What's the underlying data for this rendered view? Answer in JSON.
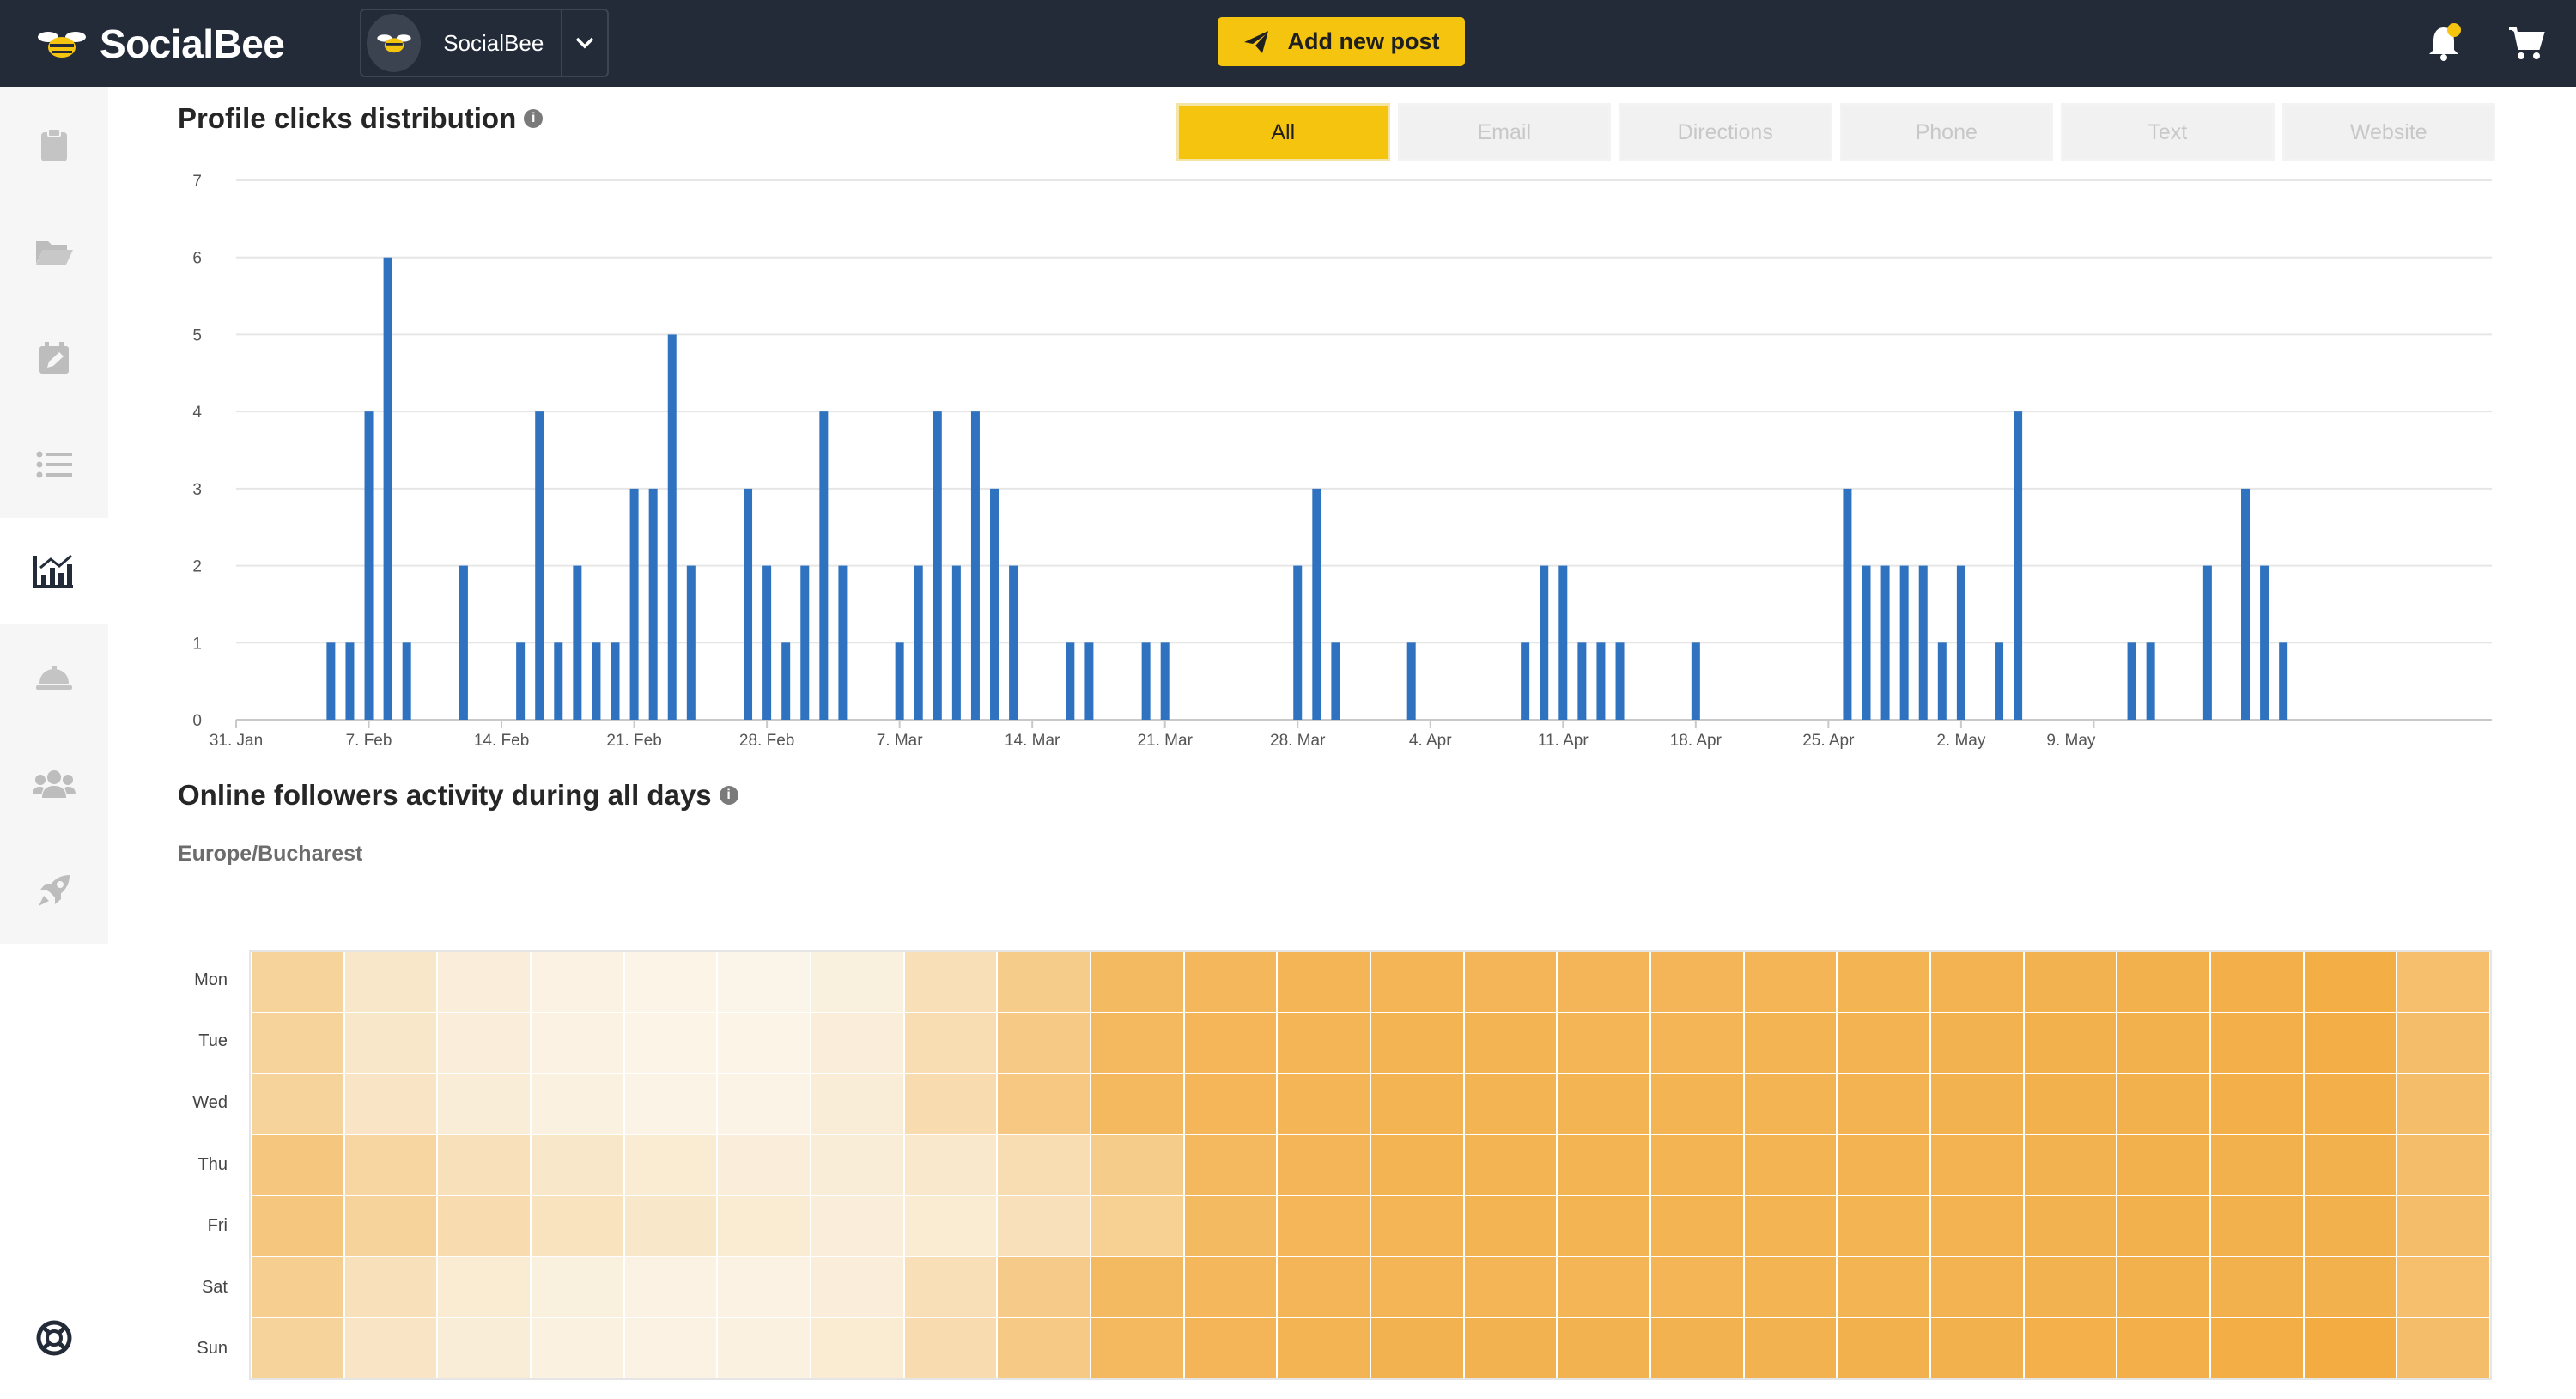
{
  "app": {
    "name": "SocialBee"
  },
  "header": {
    "brand_name": "SocialBee",
    "add_post_label": "Add new post"
  },
  "sidebar": {
    "items": [
      {
        "icon": "clipboard-icon"
      },
      {
        "icon": "folder-icon"
      },
      {
        "icon": "calendar-edit-icon"
      },
      {
        "icon": "list-icon"
      },
      {
        "icon": "analytics-icon",
        "active": true
      },
      {
        "icon": "concierge-bell-icon"
      },
      {
        "icon": "users-icon"
      },
      {
        "icon": "rocket-icon"
      }
    ],
    "bottom_icon": "help-lifebuoy-icon"
  },
  "profile_clicks": {
    "title": "Profile clicks distribution",
    "filters": [
      "All",
      "Email",
      "Directions",
      "Phone",
      "Text",
      "Website"
    ],
    "active_filter": "All"
  },
  "followers_activity": {
    "title": "Online followers activity during all days",
    "timezone": "Europe/Bucharest",
    "days": [
      "Mon",
      "Tue",
      "Wed",
      "Thu",
      "Fri",
      "Sat",
      "Sun"
    ],
    "low_color": "#fbf6ec",
    "high_color": "#f2a93b",
    "intensity": [
      [
        0.45,
        0.2,
        0.1,
        0.05,
        0.03,
        0.02,
        0.08,
        0.3,
        0.55,
        0.78,
        0.82,
        0.85,
        0.85,
        0.84,
        0.84,
        0.84,
        0.85,
        0.86,
        0.87,
        0.88,
        0.9,
        0.92,
        0.94,
        0.72
      ],
      [
        0.45,
        0.2,
        0.1,
        0.05,
        0.03,
        0.03,
        0.1,
        0.32,
        0.58,
        0.8,
        0.83,
        0.85,
        0.86,
        0.86,
        0.85,
        0.85,
        0.86,
        0.87,
        0.88,
        0.89,
        0.9,
        0.92,
        0.93,
        0.74
      ],
      [
        0.45,
        0.22,
        0.12,
        0.06,
        0.04,
        0.04,
        0.12,
        0.34,
        0.6,
        0.8,
        0.83,
        0.85,
        0.86,
        0.86,
        0.86,
        0.86,
        0.86,
        0.87,
        0.88,
        0.89,
        0.9,
        0.92,
        0.92,
        0.74
      ],
      [
        0.62,
        0.42,
        0.28,
        0.2,
        0.14,
        0.1,
        0.12,
        0.18,
        0.32,
        0.55,
        0.8,
        0.84,
        0.86,
        0.86,
        0.86,
        0.86,
        0.86,
        0.87,
        0.87,
        0.88,
        0.89,
        0.9,
        0.9,
        0.74
      ],
      [
        0.62,
        0.45,
        0.34,
        0.26,
        0.2,
        0.14,
        0.1,
        0.14,
        0.28,
        0.5,
        0.78,
        0.83,
        0.85,
        0.86,
        0.86,
        0.86,
        0.86,
        0.86,
        0.87,
        0.88,
        0.89,
        0.9,
        0.9,
        0.74
      ],
      [
        0.52,
        0.28,
        0.14,
        0.08,
        0.05,
        0.05,
        0.1,
        0.3,
        0.56,
        0.78,
        0.82,
        0.84,
        0.85,
        0.85,
        0.85,
        0.85,
        0.86,
        0.86,
        0.87,
        0.88,
        0.89,
        0.9,
        0.9,
        0.72
      ],
      [
        0.45,
        0.22,
        0.12,
        0.07,
        0.05,
        0.06,
        0.14,
        0.34,
        0.58,
        0.8,
        0.84,
        0.86,
        0.88,
        0.88,
        0.88,
        0.88,
        0.88,
        0.89,
        0.9,
        0.91,
        0.92,
        0.94,
        0.96,
        0.74
      ]
    ]
  },
  "chart_data": {
    "type": "bar",
    "title": "Profile clicks distribution",
    "x_start": "31. Jan",
    "x_tick_labels": [
      "31. Jan",
      "7. Feb",
      "14. Feb",
      "21. Feb",
      "28. Feb",
      "7. Mar",
      "14. Mar",
      "21. Mar",
      "28. Mar",
      "4. Apr",
      "11. Apr",
      "18. Apr",
      "25. Apr",
      "2. May",
      "9. May"
    ],
    "ylim": [
      0,
      7
    ],
    "y_ticks": [
      0,
      1,
      2,
      3,
      4,
      5,
      6,
      7
    ],
    "grid": true,
    "bar_color": "#2f72bf",
    "values": [
      0,
      0,
      0,
      0,
      0,
      1,
      1,
      4,
      6,
      1,
      0,
      0,
      2,
      0,
      0,
      1,
      4,
      1,
      2,
      1,
      1,
      3,
      3,
      5,
      2,
      0,
      0,
      3,
      2,
      1,
      2,
      4,
      2,
      0,
      0,
      1,
      2,
      4,
      2,
      4,
      3,
      2,
      0,
      0,
      1,
      1,
      0,
      0,
      1,
      1,
      0,
      0,
      0,
      0,
      0,
      0,
      2,
      3,
      1,
      0,
      0,
      0,
      1,
      0,
      0,
      0,
      0,
      0,
      1,
      2,
      2,
      1,
      1,
      1,
      0,
      0,
      0,
      1,
      0,
      0,
      0,
      0,
      0,
      0,
      0,
      3,
      2,
      2,
      2,
      2,
      1,
      2,
      0,
      1,
      4,
      0,
      0,
      0,
      0,
      0,
      1,
      1,
      0,
      0,
      2,
      0,
      3,
      2,
      1,
      0,
      0,
      0,
      0,
      0,
      0,
      0,
      0,
      0,
      0,
      0
    ]
  }
}
